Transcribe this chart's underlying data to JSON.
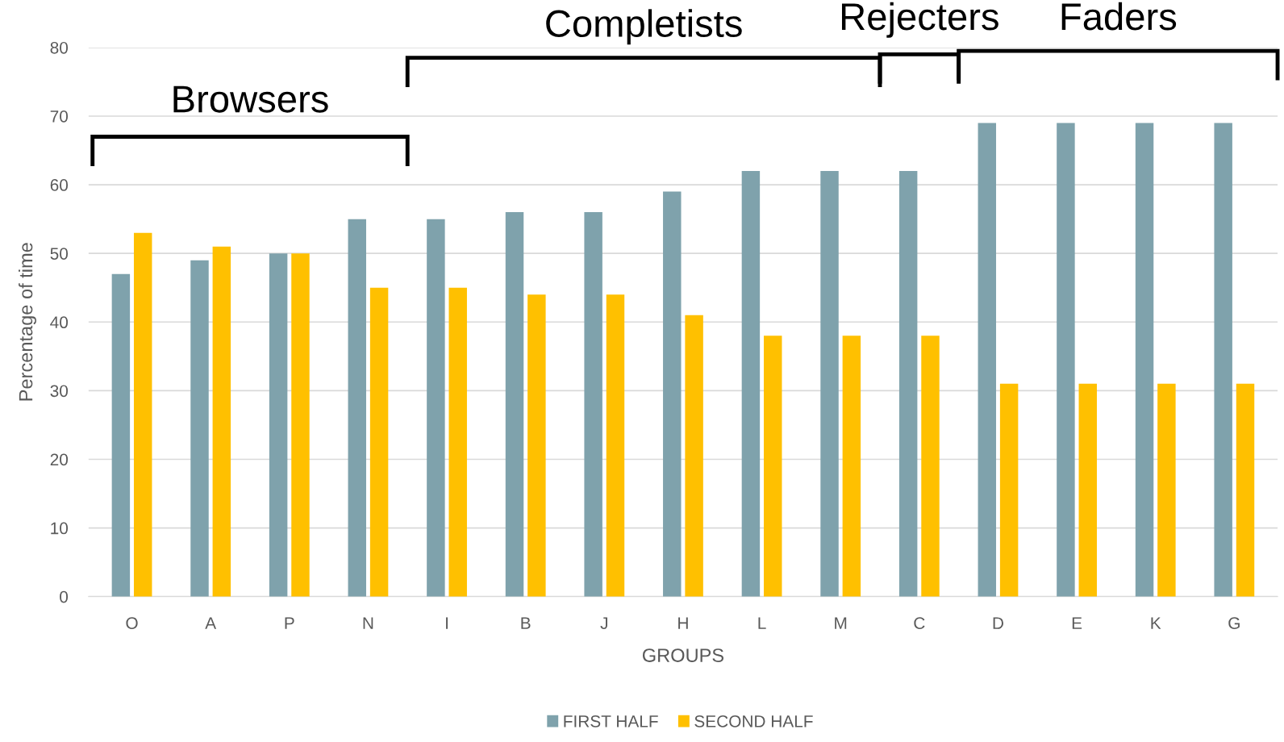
{
  "chart_data": {
    "type": "bar",
    "xlabel": "GROUPS",
    "ylabel": "Percentage of time",
    "categories": [
      "O",
      "A",
      "P",
      "N",
      "I",
      "B",
      "J",
      "H",
      "L",
      "M",
      "C",
      "D",
      "E",
      "K",
      "G"
    ],
    "series": [
      {
        "name": "FIRST HALF",
        "color": "#7fa2ac",
        "values": [
          47,
          49,
          50,
          55,
          55,
          56,
          56,
          59,
          62,
          62,
          62,
          69,
          69,
          69,
          69
        ]
      },
      {
        "name": "SECOND HALF",
        "color": "#ffc000",
        "values": [
          53,
          51,
          50,
          45,
          45,
          44,
          44,
          41,
          38,
          38,
          38,
          31,
          31,
          31,
          31
        ]
      }
    ],
    "ylim": [
      0,
      80
    ],
    "yticks": [
      0,
      10,
      20,
      30,
      40,
      50,
      60,
      70,
      80
    ],
    "grid": "y",
    "legend": "bottom",
    "annotations": [
      "Browsers",
      "Completists",
      "Rejecters",
      "Faders"
    ]
  }
}
